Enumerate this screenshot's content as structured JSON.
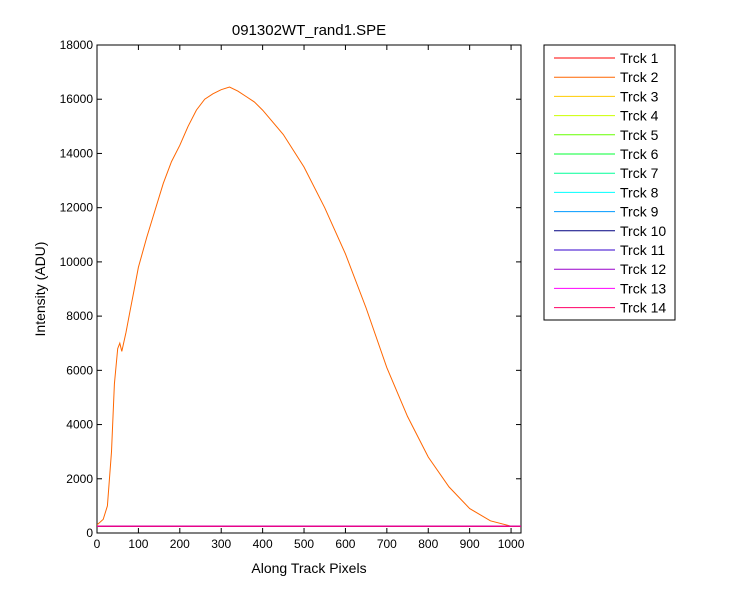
{
  "chart_data": {
    "type": "line",
    "title": "091302WT_rand1.SPE",
    "xlabel": "Along Track Pixels",
    "ylabel": "Intensity (ADU)",
    "xlim": [
      0,
      1024
    ],
    "ylim": [
      0,
      18000
    ],
    "xticks": [
      0,
      100,
      200,
      300,
      400,
      500,
      600,
      700,
      800,
      900,
      1000
    ],
    "yticks": [
      0,
      2000,
      4000,
      6000,
      8000,
      10000,
      12000,
      14000,
      16000,
      18000
    ],
    "grid": false,
    "legend_position": "outside-right",
    "series": [
      {
        "name": "Trck 1",
        "color": "#ff0000",
        "x": [
          0,
          1024
        ],
        "y": [
          250,
          250
        ]
      },
      {
        "name": "Trck 2",
        "color": "#ff6600",
        "x": [
          0,
          15,
          25,
          35,
          42,
          50,
          55,
          60,
          70,
          80,
          90,
          100,
          120,
          140,
          160,
          180,
          200,
          220,
          240,
          260,
          280,
          300,
          320,
          340,
          360,
          380,
          400,
          450,
          500,
          550,
          600,
          650,
          700,
          750,
          800,
          850,
          900,
          950,
          1000,
          1024
        ],
        "y": [
          300,
          500,
          1000,
          3000,
          5500,
          6800,
          7000,
          6700,
          7400,
          8200,
          9000,
          9800,
          10900,
          11900,
          12900,
          13700,
          14300,
          15000,
          15600,
          16000,
          16200,
          16350,
          16450,
          16300,
          16100,
          15900,
          15600,
          14700,
          13500,
          12000,
          10300,
          8300,
          6100,
          4300,
          2800,
          1700,
          900,
          450,
          250,
          250
        ]
      },
      {
        "name": "Trck 3",
        "color": "#ffcc00",
        "x": [
          0,
          1024
        ],
        "y": [
          250,
          250
        ]
      },
      {
        "name": "Trck 4",
        "color": "#ccff00",
        "x": [
          0,
          1024
        ],
        "y": [
          250,
          250
        ]
      },
      {
        "name": "Trck 5",
        "color": "#66ff00",
        "x": [
          0,
          1024
        ],
        "y": [
          250,
          250
        ]
      },
      {
        "name": "Trck 6",
        "color": "#00ff33",
        "x": [
          0,
          1024
        ],
        "y": [
          250,
          250
        ]
      },
      {
        "name": "Trck 7",
        "color": "#00ff99",
        "x": [
          0,
          1024
        ],
        "y": [
          250,
          250
        ]
      },
      {
        "name": "Trck 8",
        "color": "#00ffff",
        "x": [
          0,
          1024
        ],
        "y": [
          250,
          250
        ]
      },
      {
        "name": "Trck 9",
        "color": "#0099ff",
        "x": [
          0,
          1024
        ],
        "y": [
          250,
          250
        ]
      },
      {
        "name": "Trck 10",
        "color": "#000080",
        "x": [
          0,
          1024
        ],
        "y": [
          250,
          250
        ]
      },
      {
        "name": "Trck 11",
        "color": "#3300cc",
        "x": [
          0,
          1024
        ],
        "y": [
          250,
          250
        ]
      },
      {
        "name": "Trck 12",
        "color": "#9900cc",
        "x": [
          0,
          1024
        ],
        "y": [
          250,
          250
        ]
      },
      {
        "name": "Trck 13",
        "color": "#ff00ff",
        "x": [
          0,
          1024
        ],
        "y": [
          250,
          250
        ]
      },
      {
        "name": "Trck 14",
        "color": "#ff0066",
        "x": [
          0,
          1024
        ],
        "y": [
          250,
          250
        ]
      }
    ]
  }
}
